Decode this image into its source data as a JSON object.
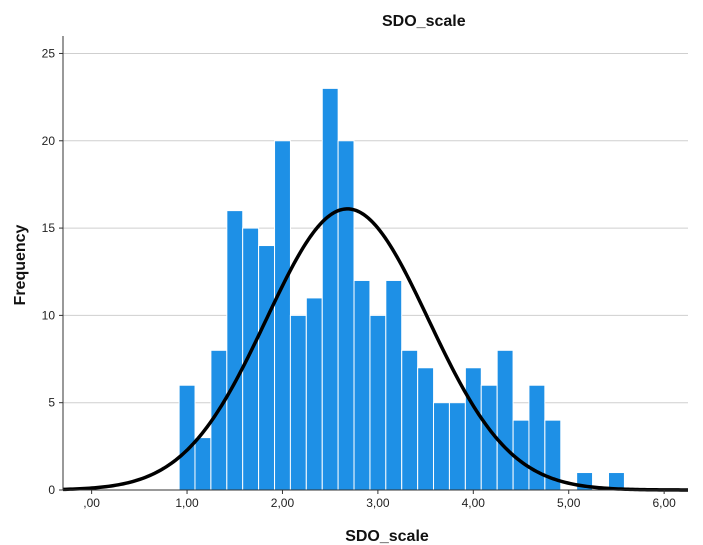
{
  "chart_data": {
    "type": "histogram",
    "title": "SDO_scale",
    "xlabel": "SDO_scale",
    "ylabel": "Frequency",
    "xlim": [
      -0.3,
      6.25
    ],
    "ylim": [
      0,
      26
    ],
    "bin_width": 0.1667,
    "x_ticks": [
      0,
      1,
      2,
      3,
      4,
      5,
      6
    ],
    "x_tick_labels": [
      ",00",
      "1,00",
      "2,00",
      "3,00",
      "4,00",
      "5,00",
      "6,00"
    ],
    "y_ticks": [
      0,
      5,
      10,
      15,
      20,
      25
    ],
    "y_tick_labels": [
      "0",
      "5",
      "10",
      "15",
      "20",
      "25"
    ],
    "grid": "horizontal",
    "bins": [
      {
        "start": 0.917,
        "value": 6
      },
      {
        "start": 1.083,
        "value": 3
      },
      {
        "start": 1.25,
        "value": 8
      },
      {
        "start": 1.417,
        "value": 16
      },
      {
        "start": 1.583,
        "value": 15
      },
      {
        "start": 1.75,
        "value": 14
      },
      {
        "start": 1.917,
        "value": 20
      },
      {
        "start": 2.083,
        "value": 10
      },
      {
        "start": 2.25,
        "value": 11
      },
      {
        "start": 2.417,
        "value": 23
      },
      {
        "start": 2.583,
        "value": 20
      },
      {
        "start": 2.75,
        "value": 12
      },
      {
        "start": 2.917,
        "value": 10
      },
      {
        "start": 3.083,
        "value": 12
      },
      {
        "start": 3.25,
        "value": 8
      },
      {
        "start": 3.417,
        "value": 7
      },
      {
        "start": 3.583,
        "value": 5
      },
      {
        "start": 3.75,
        "value": 5
      },
      {
        "start": 3.917,
        "value": 7
      },
      {
        "start": 4.083,
        "value": 6
      },
      {
        "start": 4.25,
        "value": 8
      },
      {
        "start": 4.417,
        "value": 4
      },
      {
        "start": 4.583,
        "value": 6
      },
      {
        "start": 4.75,
        "value": 4
      },
      {
        "start": 5.083,
        "value": 1
      },
      {
        "start": 5.417,
        "value": 1
      }
    ],
    "normal_curve": {
      "mean": 2.68,
      "sd": 0.85,
      "peak": 16.1
    },
    "colors": {
      "bar": "#1e90e6",
      "bar_edge": "#ffffff",
      "curve": "#000000",
      "grid": "#cfcfcf",
      "axis": "#333333"
    }
  }
}
